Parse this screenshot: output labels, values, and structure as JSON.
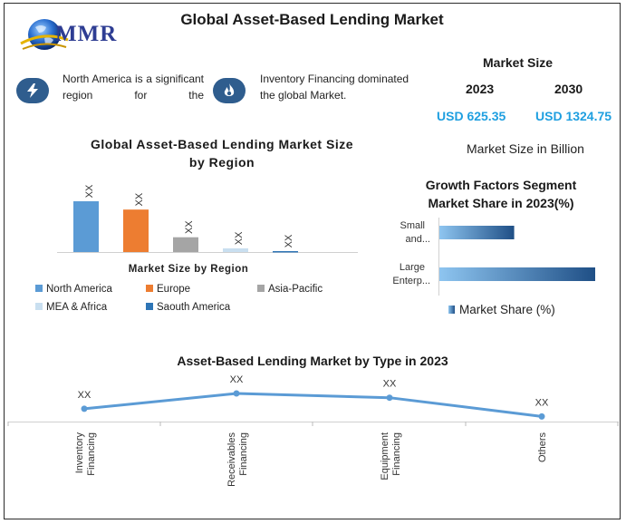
{
  "title": "Global Asset-Based Lending Market",
  "logo": {
    "text": "MMR"
  },
  "notes": [
    {
      "icon": "lightning-icon",
      "text": "North America is a significant region for the"
    },
    {
      "icon": "flame-icon",
      "text": "Inventory Financing dominated the global Market."
    }
  ],
  "market_size": {
    "title": "Market Size",
    "year1": "2023",
    "year2": "2030",
    "value1": "USD 625.35",
    "value2": "USD 1324.75",
    "unit": "Market Size in Billion"
  },
  "colors": {
    "icon_badge": "#2f5d8e",
    "value_text": "#1f9fe0",
    "line": "#5b9bd5"
  },
  "chart_data": [
    {
      "type": "bar",
      "title": "Global Asset-Based Lending Market Size by Region",
      "xlabel": "Market Size by Region",
      "categories": [
        "North America",
        "Europe",
        "Asia-Pacific",
        "MEA & Africa",
        "Saouth America"
      ],
      "values": [
        55,
        46,
        16,
        4,
        1
      ],
      "data_labels": [
        "XX",
        "XX",
        "XX",
        "XX",
        "XX"
      ],
      "colors": [
        "#5b9bd5",
        "#ed7d31",
        "#a5a5a5",
        "#c9dff0",
        "#2e75b6"
      ],
      "legend": [
        "North America",
        "Europe",
        "Asia-Pacific",
        "MEA & Africa",
        "Saouth America"
      ],
      "legend_position": "bottom",
      "grid": false
    },
    {
      "type": "bar",
      "orientation": "horizontal",
      "title": "Growth Factors Segment Market Share in 2023(%)",
      "categories": [
        "Small and...",
        "Large Enterp..."
      ],
      "series": [
        {
          "name": "Market Share (%)",
          "values": [
            48,
            100
          ]
        }
      ],
      "legend_position": "bottom",
      "grid": false
    },
    {
      "type": "line",
      "title": "Asset-Based Lending Market by Type  in 2023",
      "categories": [
        "Inventory Financing",
        "Receivables Financing",
        "Equipment Financing",
        "Others"
      ],
      "values": [
        15,
        33,
        28,
        6
      ],
      "data_labels": [
        "XX",
        "XX",
        "XX",
        "XX"
      ],
      "grid": false
    }
  ]
}
